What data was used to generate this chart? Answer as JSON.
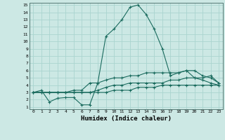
{
  "xlabel": "Humidex (Indice chaleur)",
  "bg_color": "#cce8e4",
  "grid_color": "#aad4cf",
  "line_color": "#1a6b5e",
  "xlim": [
    -0.5,
    23.5
  ],
  "ylim": [
    1,
    15
  ],
  "xticks": [
    0,
    1,
    2,
    3,
    4,
    5,
    6,
    7,
    8,
    9,
    10,
    11,
    12,
    13,
    14,
    15,
    16,
    17,
    18,
    19,
    20,
    21,
    22,
    23
  ],
  "yticks": [
    1,
    2,
    3,
    4,
    5,
    6,
    7,
    8,
    9,
    10,
    11,
    12,
    13,
    14,
    15
  ],
  "series": [
    [
      3.0,
      3.3,
      1.7,
      2.2,
      2.3,
      2.3,
      1.3,
      1.3,
      4.3,
      10.7,
      11.7,
      13.0,
      14.7,
      15.0,
      13.7,
      11.7,
      9.0,
      5.3,
      5.7,
      6.0,
      5.0,
      5.0,
      5.3,
      4.3
    ],
    [
      3.0,
      3.0,
      3.0,
      3.0,
      3.0,
      3.3,
      3.3,
      4.3,
      4.3,
      4.7,
      5.0,
      5.0,
      5.3,
      5.3,
      5.7,
      5.7,
      5.7,
      5.7,
      5.7,
      6.0,
      6.0,
      5.3,
      5.0,
      4.3
    ],
    [
      3.0,
      3.0,
      3.0,
      3.0,
      3.0,
      3.0,
      3.0,
      3.0,
      3.3,
      3.7,
      4.0,
      4.0,
      4.3,
      4.3,
      4.3,
      4.3,
      4.3,
      4.7,
      4.7,
      5.0,
      5.0,
      4.7,
      4.3,
      4.0
    ],
    [
      3.0,
      3.0,
      3.0,
      3.0,
      3.0,
      3.0,
      3.0,
      3.0,
      3.0,
      3.0,
      3.3,
      3.3,
      3.3,
      3.7,
      3.7,
      3.7,
      4.0,
      4.0,
      4.0,
      4.0,
      4.0,
      4.0,
      4.0,
      4.0
    ]
  ]
}
